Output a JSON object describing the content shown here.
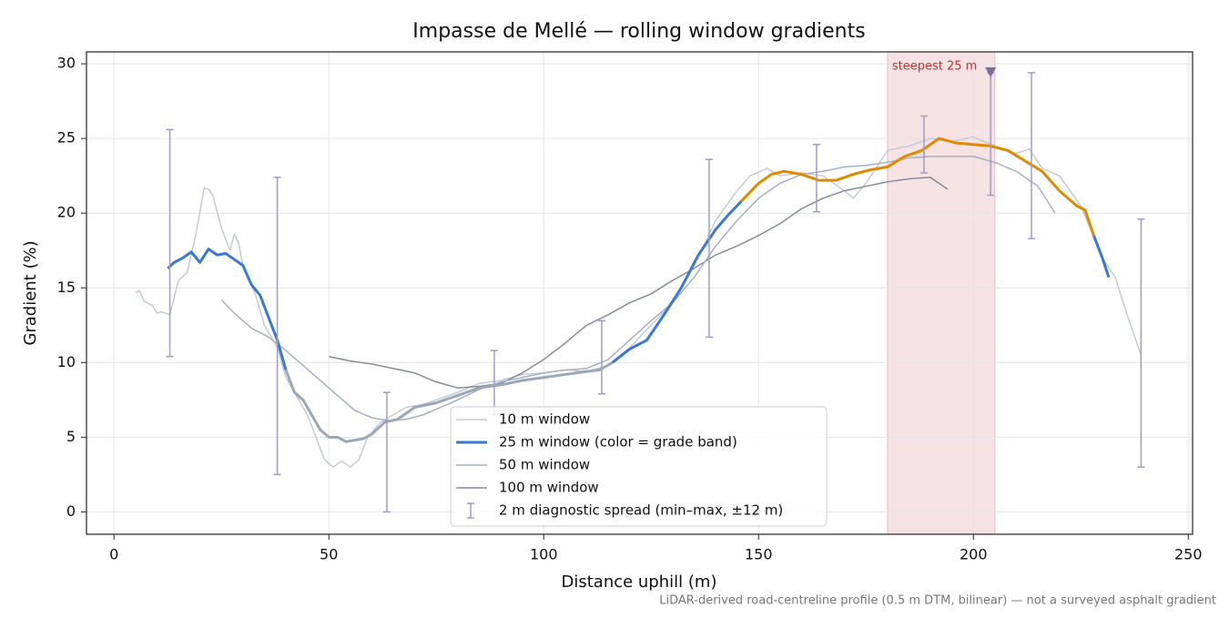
{
  "chart_data": {
    "type": "line",
    "title": "Impasse de Mellé — rolling window gradients",
    "x_label": "Distance uphill (m)",
    "y_label": "Gradient (%)",
    "footnote": "LiDAR-derived road-centreline profile (0.5 m DTM, bilinear) — not a surveyed asphalt gradient",
    "xlim": [
      -6.4,
      251
    ],
    "ylim": [
      -1.5,
      30.8
    ],
    "xticks": [
      0,
      50,
      100,
      150,
      200,
      250
    ],
    "yticks": [
      0,
      5,
      10,
      15,
      20,
      25,
      30
    ],
    "grid": true,
    "legend": "lower center",
    "series": [
      {
        "name": "10 m window",
        "color": "#c4cad6",
        "width": 1.5,
        "x": [
          5,
          6,
          7,
          9,
          10,
          11,
          13,
          15,
          17,
          19,
          21,
          22,
          23,
          25,
          27,
          28,
          29,
          30,
          33,
          35,
          38,
          40,
          42,
          45,
          47,
          49,
          51,
          53,
          55,
          57,
          59,
          62,
          65,
          68,
          72,
          75,
          80,
          85,
          90,
          95,
          100,
          105,
          110,
          115,
          120,
          125,
          130,
          135,
          140,
          145,
          148,
          152,
          155,
          160,
          165,
          170,
          172,
          175,
          180,
          185,
          190,
          195,
          200,
          205,
          210,
          213,
          216,
          220,
          225,
          230,
          233,
          236,
          239
        ],
        "values": [
          14.7,
          14.8,
          14.1,
          13.8,
          13.3,
          13.4,
          13.2,
          15.5,
          16,
          18.5,
          21.7,
          21.6,
          21.2,
          19,
          17.5,
          18.6,
          18,
          16.5,
          14.5,
          12.5,
          11,
          9,
          8,
          6.5,
          5,
          3.5,
          3,
          3.4,
          3,
          3.5,
          5,
          6,
          6.5,
          7,
          7.2,
          7.5,
          8,
          8.6,
          8.8,
          9.2,
          9.3,
          9.5,
          9.4,
          9.8,
          11,
          12.5,
          14,
          16.5,
          19.5,
          21.5,
          22.5,
          23,
          22.5,
          22.7,
          22.5,
          21.5,
          21,
          22,
          24.2,
          24.5,
          25,
          24.8,
          25.1,
          24.5,
          24,
          24.3,
          23,
          22.5,
          20.5,
          17,
          15.7,
          13,
          10.5
        ]
      },
      {
        "name": "25 m window (color = grade band)",
        "color": "#3a78d6",
        "width": 3,
        "band_edges": [
          10,
          20
        ],
        "band_colors": [
          "#9aa8ba",
          "#3a78d6",
          "#e08a00"
        ],
        "x": [
          12.5,
          14,
          16,
          18,
          20,
          22,
          24,
          26,
          28,
          30,
          32,
          34,
          36,
          38,
          40,
          42,
          44,
          46,
          48,
          50,
          52,
          54,
          56,
          58,
          60,
          63,
          66,
          70,
          75,
          80,
          85,
          90,
          95,
          100,
          105,
          110,
          113,
          116,
          120,
          124,
          128,
          132,
          136,
          140,
          143,
          146,
          150,
          153,
          156,
          160,
          164,
          168,
          172,
          176,
          180,
          184,
          188,
          192,
          196,
          200,
          204,
          208,
          212,
          216,
          220,
          224,
          226,
          228,
          230,
          231.5
        ],
        "values": [
          16.3,
          16.7,
          17,
          17.4,
          16.7,
          17.6,
          17.2,
          17.3,
          16.9,
          16.5,
          15.2,
          14.5,
          13,
          11.5,
          9.5,
          8,
          7.5,
          6.5,
          5.5,
          5,
          5,
          4.7,
          4.8,
          4.9,
          5.2,
          6,
          6.2,
          7,
          7.3,
          7.8,
          8.3,
          8.5,
          8.8,
          9,
          9.2,
          9.4,
          9.5,
          10,
          10.9,
          11.5,
          13.2,
          15,
          17.2,
          18.9,
          19.9,
          20.8,
          22,
          22.6,
          22.8,
          22.6,
          22.2,
          22.2,
          22.6,
          22.9,
          23.1,
          23.8,
          24.2,
          25,
          24.7,
          24.6,
          24.5,
          24.2,
          23.5,
          22.8,
          21.5,
          20.5,
          20.2,
          18.5,
          17,
          15.7
        ]
      },
      {
        "name": "50 m window",
        "color": "#a7b0c2",
        "width": 1.5,
        "x": [
          25,
          28,
          32,
          36,
          40,
          44,
          48,
          52,
          56,
          60,
          64,
          68,
          72,
          76,
          80,
          85,
          90,
          95,
          100,
          105,
          110,
          115,
          120,
          125,
          130,
          135,
          140,
          145,
          150,
          155,
          160,
          165,
          170,
          175,
          180,
          185,
          190,
          195,
          200,
          205,
          210,
          215,
          219
        ],
        "values": [
          14.2,
          13.3,
          12.3,
          11.7,
          10.8,
          9.8,
          8.8,
          7.8,
          6.8,
          6.3,
          6.1,
          6.2,
          6.5,
          7,
          7.5,
          8.2,
          8.7,
          9,
          9.3,
          9.5,
          9.6,
          10.2,
          11.5,
          12.8,
          14,
          15.7,
          17.8,
          19.5,
          21,
          22,
          22.6,
          22.8,
          23.1,
          23.2,
          23.4,
          23.7,
          23.8,
          23.8,
          23.8,
          23.4,
          22.8,
          21.8,
          20
        ]
      },
      {
        "name": "100 m window",
        "color": "#858d9c",
        "width": 1.5,
        "x": [
          50,
          55,
          60,
          65,
          70,
          75,
          80,
          85,
          90,
          95,
          100,
          105,
          110,
          115,
          120,
          125,
          130,
          135,
          140,
          145,
          150,
          155,
          160,
          165,
          170,
          175,
          180,
          185,
          190,
          194
        ],
        "values": [
          10.4,
          10.1,
          9.9,
          9.6,
          9.3,
          8.7,
          8.3,
          8.4,
          8.6,
          9.3,
          10.2,
          11.3,
          12.5,
          13.2,
          14,
          14.6,
          15.5,
          16.3,
          17.2,
          17.8,
          18.5,
          19.3,
          20.3,
          21,
          21.5,
          21.8,
          22.1,
          22.3,
          22.4,
          21.6
        ]
      }
    ],
    "errorbars": {
      "name": "2 m diagnostic spread (min–max, ±12 m)",
      "color": "#a09cc0",
      "x": [
        13,
        38,
        63.5,
        88.5,
        113.5,
        138.5,
        163.5,
        188.5,
        204,
        213.5,
        239
      ],
      "low": [
        10.4,
        2.5,
        0,
        6.5,
        7.9,
        11.7,
        20.1,
        22.7,
        21.2,
        18.3,
        3
      ],
      "high": [
        25.6,
        22.4,
        8,
        10.8,
        12.8,
        23.6,
        24.6,
        26.5,
        29.4,
        29.4,
        19.6
      ]
    },
    "highlight": {
      "label": "steepest 25 m",
      "xspan": [
        180,
        205
      ],
      "marker": [
        204,
        29.4
      ],
      "color": "#c0303a"
    }
  }
}
